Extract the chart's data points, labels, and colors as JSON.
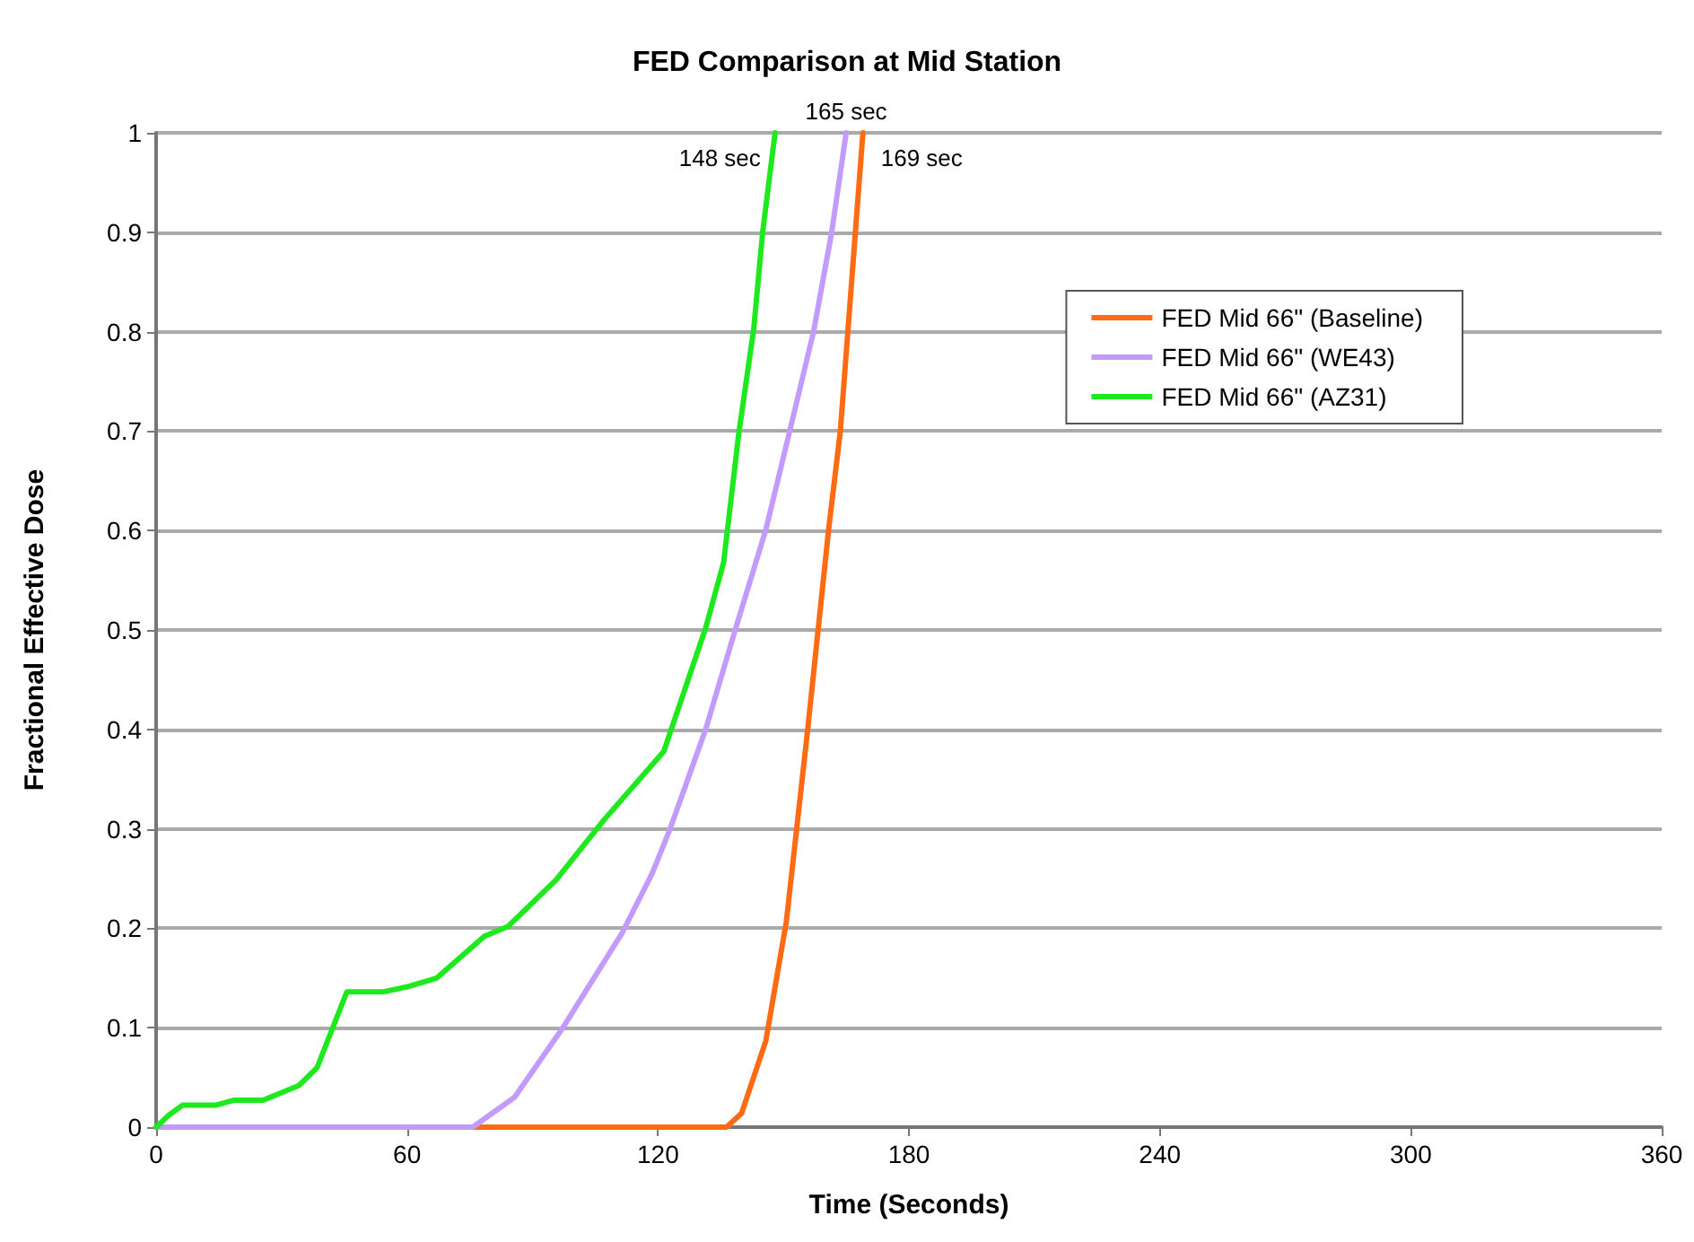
{
  "chart_data": {
    "type": "line",
    "title": "FED Comparison at Mid Station",
    "xlabel": "Time (Seconds)",
    "ylabel": "Fractional Effective Dose",
    "xlim": [
      0,
      360
    ],
    "xticks": [
      0,
      60,
      120,
      180,
      240,
      300,
      360
    ],
    "ylim": [
      0,
      1
    ],
    "yticks": [
      0,
      0.1,
      0.2,
      0.3,
      0.4,
      0.5,
      0.6,
      0.7,
      0.8,
      0.9,
      1
    ],
    "grid": "y",
    "legend": "top right",
    "marker": "none",
    "line_style": "solid",
    "series": [
      {
        "name": "FED Mid 66\" (Baseline)",
        "color": "#ff6a13",
        "x": [
          0,
          136.4,
          140,
          145.8,
          150.7,
          155.8,
          160.8,
          163.6,
          167.2,
          169
        ],
        "values": [
          0,
          0,
          0.014,
          0.087,
          0.207,
          0.4,
          0.601,
          0.7,
          0.9,
          1
        ]
      },
      {
        "name": "FED Mid 66\" (WE43)",
        "color": "#c39bff",
        "x": [
          0,
          75.7,
          85.7,
          97.1,
          111.4,
          118.6,
          122.9,
          131.4,
          138.6,
          145.8,
          151.5,
          157.2,
          161.5,
          165
        ],
        "values": [
          0,
          0,
          0.03,
          0.099,
          0.195,
          0.255,
          0.3,
          0.4,
          0.502,
          0.601,
          0.7,
          0.8,
          0.899,
          1
        ]
      },
      {
        "name": "FED Mid 66\" (AZ31)",
        "color": "#1ee81e",
        "x": [
          0,
          3,
          6.3,
          14.2,
          18.5,
          25.6,
          34.2,
          38.5,
          45.6,
          54.2,
          59.9,
          67.1,
          78.5,
          84.2,
          95.7,
          107.1,
          121.4,
          131.4,
          135.7,
          139.3,
          142.9,
          145,
          148
        ],
        "values": [
          0,
          0.012,
          0.022,
          0.022,
          0.027,
          0.027,
          0.042,
          0.06,
          0.136,
          0.136,
          0.141,
          0.15,
          0.192,
          0.202,
          0.249,
          0.309,
          0.378,
          0.502,
          0.568,
          0.697,
          0.803,
          0.899,
          1
        ]
      }
    ],
    "annotations": [
      {
        "text": "148 sec",
        "x": 148,
        "y": 1
      },
      {
        "text": "165 sec",
        "x": 165,
        "y": 1
      },
      {
        "text": "169 sec",
        "x": 169,
        "y": 1
      }
    ]
  }
}
